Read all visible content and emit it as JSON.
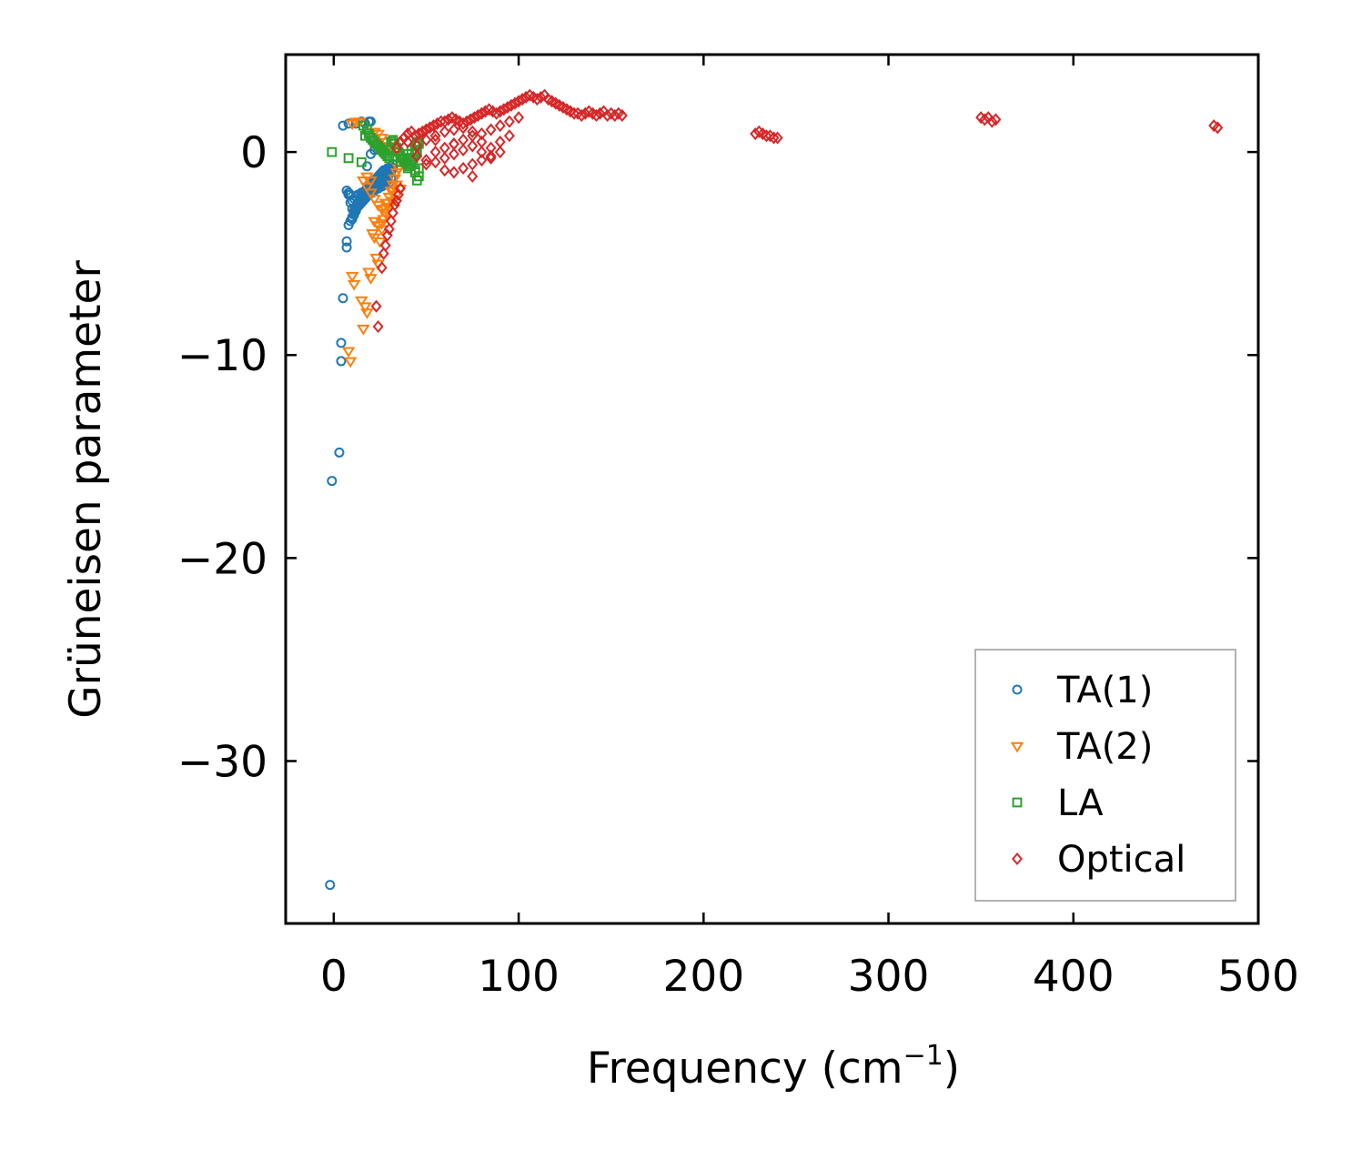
{
  "chart_data": {
    "type": "scatter",
    "title": "",
    "xlabel": "Frequency (cm",
    "xlabel_sup": "−1",
    "xlabel_end": ")",
    "ylabel": "Grüneisen parameter",
    "xlim": [
      -26,
      500
    ],
    "ylim": [
      -38,
      4.8
    ],
    "xticks": [
      0,
      100,
      200,
      300,
      400,
      500
    ],
    "xtick_labels": [
      "0",
      "100",
      "200",
      "300",
      "400",
      "500"
    ],
    "yticks": [
      0,
      -10,
      -20,
      -30
    ],
    "ytick_labels": [
      "0",
      "−10",
      "−20",
      "−30"
    ],
    "legend_position": "lower right",
    "colors": {
      "TA(1)": "#1f77b4",
      "TA(2)": "#ff7f0e",
      "LA": "#2ca02c",
      "Optical": "#d62728"
    },
    "series": [
      {
        "name": "TA(1)",
        "marker": "circle",
        "x": [
          -2,
          3,
          -1,
          4,
          4,
          5,
          7,
          7,
          8,
          8,
          9,
          10,
          11,
          12,
          13,
          14,
          15,
          16,
          17,
          18,
          19,
          20,
          21,
          22,
          23,
          24,
          25,
          26,
          27,
          28,
          29,
          30,
          31,
          7,
          8,
          9,
          10,
          11,
          12,
          13,
          14,
          15,
          16,
          17,
          18,
          19,
          20,
          21,
          22,
          23,
          24,
          25,
          26,
          27,
          28,
          29,
          30,
          31,
          10,
          11,
          12,
          13,
          14,
          15,
          16,
          17,
          18,
          19,
          20,
          21,
          22,
          23,
          24,
          25,
          26,
          27,
          28,
          29,
          30,
          31,
          32,
          9,
          10,
          11,
          12,
          13,
          14,
          15,
          16,
          17,
          18,
          19,
          20,
          21,
          22,
          23,
          24,
          25,
          26,
          27,
          28,
          29,
          30,
          31,
          32,
          5,
          8,
          12,
          15,
          17,
          19,
          20,
          18,
          20,
          22
        ],
        "y": [
          -36.1,
          -14.8,
          -16.2,
          -9.4,
          -10.3,
          -7.2,
          -4.4,
          -4.7,
          -3.6,
          -2.0,
          -2.1,
          -2.4,
          -2.3,
          -2.2,
          -2.1,
          -2.3,
          -2.0,
          -2.2,
          -1.9,
          -2.1,
          -2.0,
          -1.8,
          -2.0,
          -1.9,
          -1.7,
          -1.8,
          -1.6,
          -1.7,
          -1.5,
          -1.6,
          -1.4,
          -1.5,
          -1.3,
          -1.9,
          -2.1,
          -2.5,
          -2.8,
          -3.0,
          -2.9,
          -2.7,
          -2.6,
          -2.5,
          -2.4,
          -2.3,
          -2.2,
          -2.1,
          -2.0,
          -1.9,
          -1.8,
          -1.7,
          -1.6,
          -1.5,
          -1.4,
          -1.4,
          -1.3,
          -1.2,
          -1.1,
          -1.0,
          -3.3,
          -3.1,
          -2.8,
          -2.6,
          -2.4,
          -2.2,
          -2.0,
          -1.9,
          -1.8,
          -1.7,
          -1.6,
          -1.5,
          -1.4,
          -1.3,
          -1.2,
          -1.1,
          -1.0,
          -0.9,
          -0.9,
          -0.8,
          -0.8,
          -0.7,
          -0.6,
          -3.4,
          -3.2,
          -2.9,
          -2.7,
          -2.5,
          -2.4,
          -2.3,
          -2.2,
          -2.1,
          -2.0,
          -1.9,
          -1.8,
          -1.7,
          -1.6,
          -1.5,
          -1.4,
          -1.3,
          -1.3,
          -1.2,
          -1.1,
          -1.0,
          -1.0,
          -0.9,
          -0.8,
          1.3,
          1.4,
          1.4,
          1.5,
          1.4,
          1.5,
          1.5,
          -0.7,
          -0.1,
          0.1
        ]
      },
      {
        "name": "TA(2)",
        "marker": "triangle_down",
        "x": [
          8,
          9,
          10,
          11,
          15,
          16,
          17,
          18,
          19,
          20,
          21,
          22,
          23,
          24,
          25,
          26,
          27,
          28,
          29,
          30,
          31,
          32,
          33,
          34,
          35,
          16,
          18,
          20,
          22,
          24,
          26,
          28,
          30,
          32,
          34,
          18,
          20,
          22,
          24,
          26,
          28,
          30,
          32,
          34,
          36,
          10,
          12,
          14,
          22,
          24,
          26,
          28,
          30,
          32,
          34,
          36,
          38
        ],
        "y": [
          -9.8,
          -10.3,
          -6.1,
          -6.5,
          -7.3,
          -8.7,
          -7.6,
          -7.9,
          -5.9,
          -6.2,
          -4.0,
          -4.2,
          -5.2,
          -5.5,
          -4.4,
          -3.5,
          -3.3,
          -2.8,
          -2.5,
          -2.2,
          -1.9,
          -1.6,
          -1.3,
          -1.0,
          -0.8,
          -1.4,
          -1.7,
          -2.0,
          -2.3,
          -2.6,
          -2.8,
          -2.5,
          -2.2,
          -1.9,
          -1.6,
          -1.2,
          -1.4,
          -3.4,
          -3.6,
          -3.8,
          -3.0,
          -2.7,
          -2.4,
          -2.1,
          -1.8,
          1.4,
          1.5,
          1.5,
          1.0,
          0.9,
          0.7,
          0.5,
          0.3,
          0.2,
          0.0,
          -0.3,
          -0.6
        ]
      },
      {
        "name": "LA",
        "marker": "square",
        "x": [
          -1,
          8,
          15,
          16,
          17,
          18,
          19,
          20,
          21,
          22,
          23,
          24,
          25,
          26,
          27,
          28,
          29,
          30,
          31,
          32,
          33,
          34,
          35,
          36,
          37,
          38,
          39,
          40,
          41,
          42,
          43,
          44,
          45,
          44,
          45,
          46,
          44,
          45,
          46,
          36,
          38,
          40,
          42,
          44,
          46,
          40,
          42,
          44,
          46
        ],
        "y": [
          0.0,
          -0.3,
          -0.5,
          1.3,
          0.8,
          1.1,
          0.9,
          0.7,
          0.6,
          0.5,
          0.4,
          0.3,
          0.2,
          0.1,
          0.0,
          -0.1,
          -0.2,
          -0.3,
          0.5,
          0.6,
          0.4,
          0.2,
          0.0,
          -0.2,
          -0.3,
          -0.4,
          -0.5,
          -0.6,
          -0.7,
          -0.5,
          -0.3,
          -0.1,
          0.0,
          -1.0,
          -1.4,
          -0.8,
          0.3,
          0.5,
          0.4,
          -0.5,
          -0.3,
          -0.1,
          0.1,
          0.3,
          0.5,
          -0.8,
          -0.6,
          -0.9,
          -1.2
        ]
      },
      {
        "name": "Optical",
        "marker": "diamond",
        "x": [
          23,
          24,
          26,
          27,
          28,
          29,
          30,
          31,
          32,
          33,
          34,
          35,
          36,
          34,
          36,
          38,
          40,
          42,
          44,
          46,
          48,
          50,
          52,
          54,
          56,
          58,
          60,
          62,
          64,
          66,
          68,
          70,
          72,
          74,
          76,
          78,
          80,
          82,
          84,
          86,
          88,
          90,
          92,
          94,
          96,
          98,
          100,
          102,
          104,
          106,
          108,
          110,
          112,
          114,
          116,
          118,
          120,
          122,
          124,
          126,
          128,
          130,
          132,
          134,
          136,
          138,
          140,
          142,
          144,
          146,
          148,
          150,
          152,
          154,
          156,
          40,
          45,
          50,
          55,
          60,
          65,
          70,
          75,
          80,
          85,
          90,
          95,
          100,
          45,
          50,
          55,
          60,
          65,
          70,
          75,
          80,
          85,
          90,
          95,
          50,
          55,
          60,
          65,
          70,
          75,
          80,
          85,
          60,
          65,
          70,
          75,
          80,
          85,
          90,
          55,
          65,
          75,
          228,
          230,
          232,
          234,
          236,
          238,
          240,
          350,
          352,
          354,
          356,
          358,
          476,
          478
        ],
        "y": [
          -7.6,
          -8.6,
          -5.7,
          -5.0,
          -4.6,
          -4.1,
          -3.8,
          -3.4,
          -3.0,
          -2.6,
          -2.4,
          -2.1,
          -1.8,
          0.2,
          0.5,
          0.7,
          0.9,
          1.0,
          0.8,
          0.9,
          1.0,
          1.1,
          1.2,
          1.3,
          1.4,
          1.5,
          1.5,
          1.6,
          1.7,
          1.6,
          1.5,
          1.4,
          1.5,
          1.6,
          1.7,
          1.8,
          1.9,
          2.0,
          2.1,
          2.0,
          1.9,
          2.0,
          2.1,
          2.2,
          2.3,
          2.4,
          2.5,
          2.6,
          2.7,
          2.8,
          2.7,
          2.6,
          2.7,
          2.8,
          2.6,
          2.5,
          2.4,
          2.3,
          2.2,
          2.1,
          2.0,
          1.9,
          1.9,
          1.8,
          1.9,
          2.0,
          1.9,
          1.8,
          1.9,
          2.0,
          1.8,
          1.9,
          1.8,
          1.9,
          1.8,
          0.5,
          0.3,
          0.6,
          0.8,
          1.0,
          1.1,
          1.2,
          1.0,
          0.9,
          1.1,
          1.3,
          1.5,
          1.7,
          -0.2,
          -0.4,
          0.0,
          0.2,
          0.4,
          0.6,
          0.8,
          0.5,
          0.2,
          0.5,
          0.8,
          -0.6,
          -0.5,
          -0.3,
          -0.1,
          0.1,
          0.3,
          0.0,
          -0.3,
          -0.9,
          -1.0,
          -0.8,
          -0.6,
          -0.4,
          -0.2,
          0.0,
          0.6,
          0.4,
          -1.2,
          0.9,
          1.0,
          0.9,
          0.8,
          0.8,
          0.7,
          0.7,
          1.7,
          1.6,
          1.7,
          1.5,
          1.6,
          1.3,
          1.2
        ]
      }
    ]
  }
}
